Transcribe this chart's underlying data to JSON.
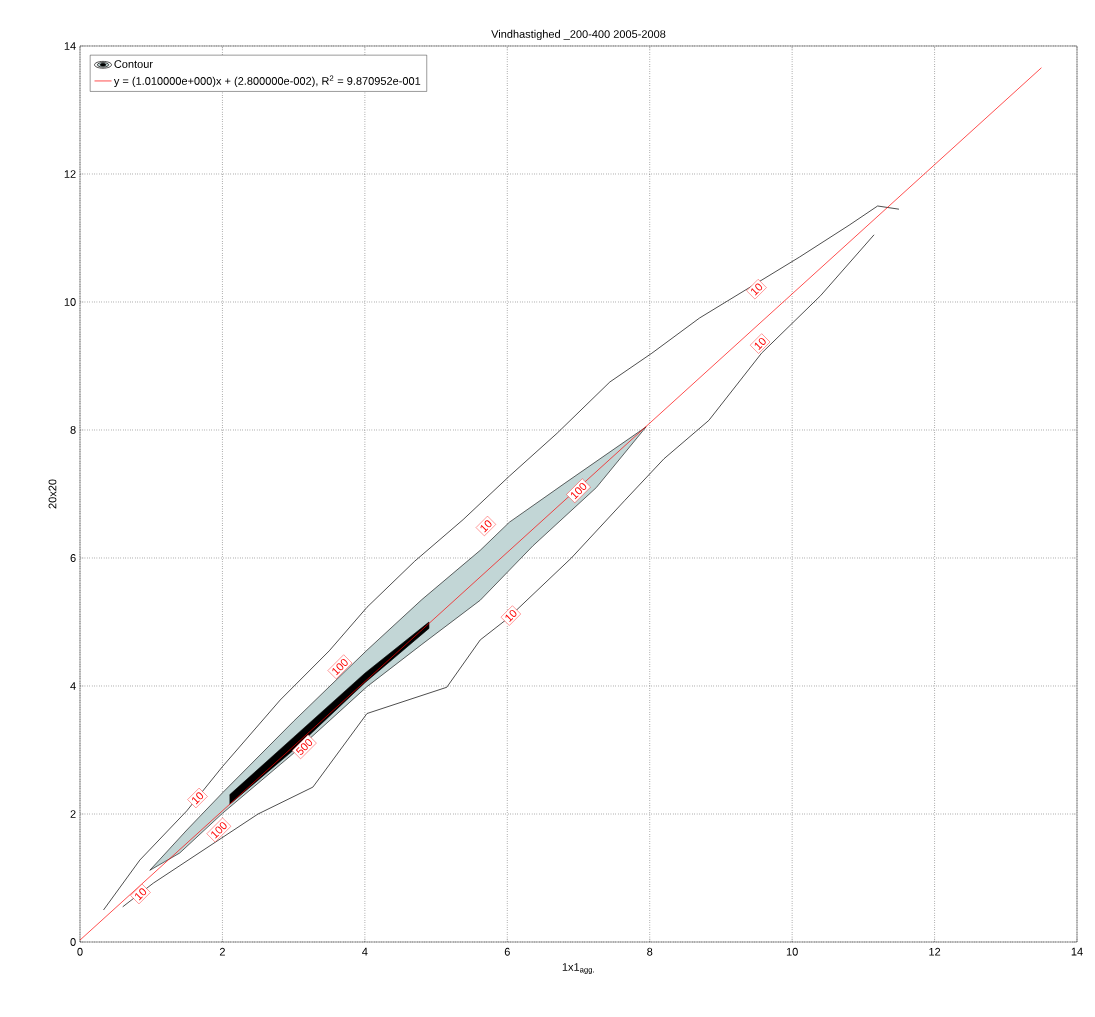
{
  "chart_data": {
    "type": "line",
    "title": "Vindhastighed _200-400 2005-2008",
    "xlabel": "1x1$_{agg.}$",
    "ylabel": "20x20",
    "xlim": [
      0,
      14
    ],
    "ylim": [
      0,
      14
    ],
    "xticks": [
      0,
      2,
      4,
      6,
      8,
      10,
      12,
      14
    ],
    "yticks": [
      0,
      2,
      4,
      6,
      8,
      10,
      12,
      14
    ],
    "grid": true,
    "legend": "top left",
    "line_style": "solid",
    "marker": "none",
    "series": [
      {
        "name": "Contour",
        "type": "line",
        "color": "#000000",
        "x": [
          0.33,
          0.84,
          1.5,
          2.0,
          2.81,
          3.5,
          4.03,
          4.7,
          5.38,
          6.03,
          6.7,
          7.44,
          8.03,
          8.7,
          10.1,
          10.8,
          11.2,
          11.5
        ],
        "values": [
          0.5,
          1.28,
          2.05,
          2.74,
          3.78,
          4.55,
          5.23,
          5.95,
          6.6,
          7.28,
          7.95,
          8.75,
          9.2,
          9.75,
          10.7,
          11.2,
          11.5,
          11.45
        ]
      },
      {
        "type": "line",
        "color": "#000000",
        "x": [
          0.6,
          1.03,
          2.5,
          3.27,
          4.03,
          5.15,
          5.62,
          6.0,
          6.9,
          7.65,
          8.2,
          8.83,
          9.57,
          10.4,
          11.15
        ],
        "values": [
          0.55,
          0.92,
          2.0,
          2.42,
          3.57,
          3.98,
          4.72,
          5.05,
          6.0,
          6.9,
          7.55,
          8.15,
          9.2,
          10.1,
          11.05
        ]
      },
      {
        "type": "area",
        "color": "#c2d6d6",
        "x": [
          0.98,
          1.5,
          2.0,
          3.0,
          4.03,
          4.8,
          5.62,
          6.03,
          6.81,
          7.95,
          7.25,
          6.36,
          5.62,
          4.8,
          4.03,
          3.0,
          2.0,
          1.4,
          0.98
        ],
        "values": [
          1.12,
          1.75,
          2.33,
          3.45,
          4.56,
          5.35,
          6.12,
          6.56,
          7.17,
          8.05,
          7.1,
          6.19,
          5.34,
          4.65,
          3.99,
          2.95,
          2.01,
          1.39,
          1.12
        ]
      },
      {
        "type": "area",
        "color": "#000000",
        "x": [
          2.1,
          3.0,
          4.0,
          4.9,
          4.9,
          4.0,
          3.0,
          2.1
        ],
        "values": [
          2.3,
          3.2,
          4.2,
          5.0,
          4.9,
          4.05,
          3.0,
          2.15
        ]
      },
      {
        "name": "y = (1.010000e+000)x + (2.800000e-002), R$^{2}$ = 9.870952e-001",
        "type": "line",
        "color": "#ff0000",
        "x": [
          0,
          13.5
        ],
        "values": [
          0.03,
          13.66
        ]
      }
    ],
    "annotations": [
      {
        "text": "10",
        "x": 0.85,
        "y": 0.75
      },
      {
        "text": "10",
        "x": 1.65,
        "y": 2.25
      },
      {
        "text": "100",
        "x": 1.95,
        "y": 1.75
      },
      {
        "text": "500",
        "x": 3.15,
        "y": 3.05
      },
      {
        "text": "100",
        "x": 3.65,
        "y": 4.3
      },
      {
        "text": "10",
        "x": 5.7,
        "y": 6.5
      },
      {
        "text": "10",
        "x": 6.05,
        "y": 5.1
      },
      {
        "text": "100",
        "x": 7.0,
        "y": 7.05
      },
      {
        "text": "10",
        "x": 9.5,
        "y": 10.2
      },
      {
        "text": "10",
        "x": 9.55,
        "y": 9.35
      }
    ]
  }
}
